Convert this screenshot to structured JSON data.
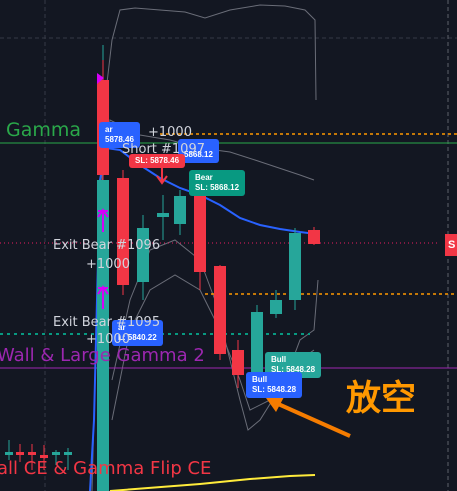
{
  "levels": {
    "large_gamma": "Gamma",
    "call_wall": "Wall & Large Gamma 2",
    "call_ce": "all CE & Gamma Flip CE"
  },
  "annotations": {
    "plus_top": "+1000",
    "short": "Short #1097",
    "exit_1096": "Exit Bear #1096",
    "plus_1096": "+1000",
    "exit_1095": "Exit Bear #1095",
    "plus_1095": "+1000"
  },
  "tags": {
    "t1": {
      "title": "ar",
      "sl": "5878.46"
    },
    "t2": {
      "title": "",
      "sl": "5868.12"
    },
    "t3": {
      "title": "",
      "sl": "SL: 5878.46"
    },
    "t4": {
      "title": "Bear",
      "sl": "SL: 5868.12"
    },
    "t5": {
      "title": "ar",
      "sl": "L: 5840.22"
    },
    "t6": {
      "title": "Bull",
      "sl": "SL: 5848.28"
    },
    "t7": {
      "title": "Bull",
      "sl": "SL: 5848.28"
    }
  },
  "price_tab_text": "S",
  "note": "放空",
  "colors": {
    "bull": "#26a69a",
    "bear": "#f23645",
    "ema": "#2962ff",
    "band": "#787b86",
    "gamma_flip": "#ffeb3b",
    "level_orange": "#ff9800",
    "level_green": "#089981",
    "level_pink": "#e91e63",
    "annotation_arrow": "#f57c00"
  },
  "icons": [
    "short-entry-marker-icon",
    "exit-marker-icon",
    "stop-marker-icon",
    "pointer-arrow-icon"
  ]
}
